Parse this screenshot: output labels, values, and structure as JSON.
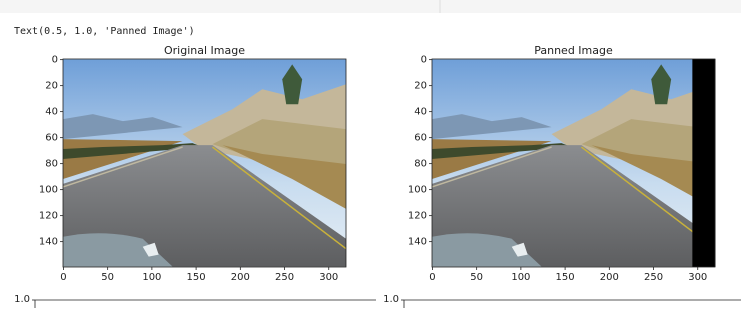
{
  "output_text": "Text(0.5, 1.0, 'Panned Image')",
  "plots": [
    {
      "title": "Original Image",
      "xlim": [
        -0.5,
        319.5
      ],
      "ylim": [
        159.5,
        -0.5
      ],
      "xticks": [
        0,
        50,
        100,
        150,
        200,
        250,
        300
      ],
      "yticks": [
        0,
        20,
        40,
        60,
        80,
        100,
        120,
        140
      ]
    },
    {
      "title": "Panned Image",
      "xlim": [
        -0.5,
        319.5
      ],
      "ylim": [
        159.5,
        -0.5
      ],
      "xticks": [
        0,
        50,
        100,
        150,
        200,
        250,
        300
      ],
      "yticks": [
        0,
        20,
        40,
        60,
        80,
        100,
        120,
        140
      ]
    }
  ],
  "next_plots": [
    {
      "yticks": [
        {
          "value": 1,
          "label": "1.0"
        }
      ]
    },
    {
      "yticks": [
        {
          "value": 1,
          "label": "1.0"
        }
      ]
    }
  ]
}
